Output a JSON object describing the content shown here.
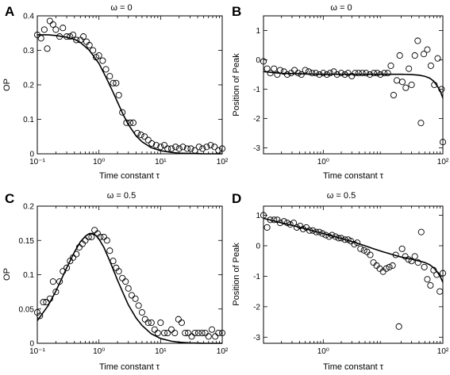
{
  "chart_data": [
    {
      "panel": "A",
      "type": "scatter",
      "title": "ω = 0",
      "xlabel": "Time constant  τ",
      "ylabel": "OP",
      "xscale": "log",
      "xlim": [
        0.1,
        100
      ],
      "ylim": [
        0,
        0.4
      ],
      "xticks": [
        0.1,
        1,
        10,
        100
      ],
      "xtick_labels": [
        "10⁻¹",
        "10⁰",
        "10¹",
        "10²"
      ],
      "yticks": [
        0,
        0.1,
        0.2,
        0.3,
        0.4
      ],
      "ytick_labels": [
        "0",
        "0.1",
        "0.2",
        "0.3",
        "0.4"
      ],
      "series": [
        {
          "marker": "open-circle",
          "x": [
            0.1,
            0.115,
            0.13,
            0.145,
            0.16,
            0.18,
            0.2,
            0.23,
            0.26,
            0.3,
            0.34,
            0.38,
            0.43,
            0.5,
            0.56,
            0.63,
            0.7,
            0.8,
            0.9,
            1.0,
            1.15,
            1.3,
            1.5,
            1.7,
            1.9,
            2.1,
            2.4,
            2.8,
            3.2,
            3.6,
            4.2,
            4.8,
            5.5,
            6.3,
            7.2,
            8.5,
            10,
            11.5,
            13,
            15,
            17.5,
            20,
            23,
            27,
            31,
            36,
            42,
            48,
            56,
            65,
            75,
            87,
            100
          ],
          "y": [
            0.345,
            0.335,
            0.36,
            0.305,
            0.385,
            0.375,
            0.36,
            0.34,
            0.365,
            0.34,
            0.34,
            0.345,
            0.33,
            0.33,
            0.34,
            0.325,
            0.315,
            0.3,
            0.28,
            0.285,
            0.27,
            0.245,
            0.225,
            0.205,
            0.205,
            0.17,
            0.12,
            0.09,
            0.09,
            0.09,
            0.06,
            0.055,
            0.05,
            0.04,
            0.03,
            0.025,
            0.02,
            0.025,
            0.015,
            0.015,
            0.02,
            0.015,
            0.02,
            0.015,
            0.015,
            0.01,
            0.02,
            0.015,
            0.02,
            0.025,
            0.02,
            0.01,
            0.015
          ]
        },
        {
          "marker": "solid-line",
          "x": [
            0.1,
            0.15,
            0.2,
            0.3,
            0.4,
            0.5,
            0.7,
            1.0,
            1.3,
            1.7,
            2.0,
            2.5,
            3.0,
            4.0,
            5.0,
            7.0,
            10,
            15,
            20,
            30,
            50,
            100
          ],
          "y": [
            0.345,
            0.345,
            0.343,
            0.338,
            0.332,
            0.323,
            0.3,
            0.262,
            0.222,
            0.178,
            0.15,
            0.112,
            0.085,
            0.052,
            0.035,
            0.018,
            0.009,
            0.004,
            0.002,
            0.001,
            0.0,
            0.0
          ]
        }
      ]
    },
    {
      "panel": "B",
      "type": "scatter",
      "title": "ω = 0",
      "xlabel": "Time constant  τ",
      "ylabel": "Position of Peak",
      "xscale": "log",
      "xlim": [
        0.1,
        100
      ],
      "ylim": [
        -3.2,
        1.5
      ],
      "xticks": [
        1,
        100
      ],
      "xtick_labels": [
        "10⁰",
        "10²"
      ],
      "yticks": [
        -3,
        -2,
        -1,
        0,
        1
      ],
      "ytick_labels": [
        "-3",
        "-2",
        "-1",
        "0",
        "1"
      ],
      "series": [
        {
          "marker": "open-circle",
          "x": [
            0.1,
            0.115,
            0.13,
            0.15,
            0.17,
            0.19,
            0.22,
            0.25,
            0.29,
            0.33,
            0.38,
            0.43,
            0.5,
            0.57,
            0.65,
            0.75,
            0.86,
            1.0,
            1.15,
            1.3,
            1.5,
            1.7,
            2.0,
            2.3,
            2.6,
            3.0,
            3.4,
            3.9,
            4.5,
            5.2,
            6.0,
            7.0,
            8.0,
            9.0,
            10.5,
            12,
            13.5,
            15,
            17,
            19,
            21,
            24,
            27,
            30,
            34,
            38,
            43,
            48,
            55,
            63,
            72,
            82,
            95,
            100
          ],
          "y": [
            -0.05,
            -0.3,
            -0.45,
            -0.3,
            -0.5,
            -0.35,
            -0.4,
            -0.5,
            -0.45,
            -0.35,
            -0.45,
            -0.5,
            -0.35,
            -0.4,
            -0.45,
            -0.45,
            -0.5,
            -0.45,
            -0.5,
            -0.45,
            -0.4,
            -0.5,
            -0.45,
            -0.5,
            -0.45,
            -0.55,
            -0.45,
            -0.45,
            -0.45,
            -0.45,
            -0.5,
            -0.45,
            -0.45,
            -0.5,
            -0.45,
            -0.45,
            -0.2,
            -1.2,
            -0.7,
            0.15,
            -0.75,
            -0.95,
            -0.3,
            -0.85,
            0.15,
            0.65,
            -2.15,
            0.2,
            0.35,
            -0.2,
            -0.85,
            0.05,
            -1.0,
            -2.8
          ]
        },
        {
          "marker": "solid-line",
          "x": [
            0.1,
            0.2,
            0.5,
            1,
            2,
            5,
            10,
            20,
            30,
            40,
            50,
            60,
            70,
            80,
            90,
            100
          ],
          "y": [
            -0.4,
            -0.46,
            -0.48,
            -0.49,
            -0.49,
            -0.49,
            -0.49,
            -0.49,
            -0.5,
            -0.52,
            -0.56,
            -0.62,
            -0.72,
            -0.88,
            -1.05,
            -1.3
          ]
        }
      ]
    },
    {
      "panel": "C",
      "type": "scatter",
      "title": "ω = 0.5",
      "xlabel": "Time constant  τ",
      "ylabel": "OP",
      "xscale": "log",
      "xlim": [
        0.1,
        100
      ],
      "ylim": [
        0,
        0.2
      ],
      "xticks": [
        0.1,
        1,
        10,
        100
      ],
      "xtick_labels": [
        "10⁻¹",
        "10⁰",
        "10¹",
        "10²"
      ],
      "yticks": [
        0,
        0.05,
        0.1,
        0.15,
        0.2
      ],
      "ytick_labels": [
        "0",
        "0.05",
        "0.1",
        "0.15",
        "0.2"
      ],
      "series": [
        {
          "marker": "open-circle",
          "x": [
            0.1,
            0.11,
            0.125,
            0.14,
            0.16,
            0.18,
            0.2,
            0.23,
            0.26,
            0.3,
            0.34,
            0.38,
            0.43,
            0.48,
            0.54,
            0.6,
            0.68,
            0.76,
            0.85,
            0.95,
            1.05,
            1.2,
            1.35,
            1.5,
            1.7,
            1.9,
            2.1,
            2.4,
            2.7,
            3.0,
            3.4,
            3.9,
            4.4,
            5.0,
            5.6,
            6.3,
            7.1,
            8.0,
            9.0,
            10,
            11.5,
            13,
            15,
            17,
            19.5,
            22,
            25,
            28,
            32,
            36,
            41,
            47,
            53,
            60,
            68,
            77,
            87,
            100
          ],
          "y": [
            0.045,
            0.04,
            0.06,
            0.06,
            0.065,
            0.09,
            0.075,
            0.09,
            0.105,
            0.11,
            0.12,
            0.125,
            0.13,
            0.14,
            0.145,
            0.15,
            0.155,
            0.155,
            0.165,
            0.16,
            0.155,
            0.155,
            0.15,
            0.135,
            0.12,
            0.11,
            0.105,
            0.095,
            0.09,
            0.08,
            0.07,
            0.065,
            0.055,
            0.045,
            0.035,
            0.03,
            0.03,
            0.02,
            0.015,
            0.03,
            0.015,
            0.015,
            0.02,
            0.015,
            0.035,
            0.03,
            0.015,
            0.015,
            0.01,
            0.015,
            0.015,
            0.015,
            0.015,
            0.01,
            0.02,
            0.01,
            0.015,
            0.015
          ]
        },
        {
          "marker": "solid-line",
          "x": [
            0.1,
            0.15,
            0.2,
            0.3,
            0.4,
            0.5,
            0.6,
            0.7,
            0.8,
            0.9,
            1.0,
            1.2,
            1.5,
            2.0,
            2.5,
            3.0,
            4.0,
            5.0,
            7.0,
            10,
            15,
            20,
            30,
            50,
            100
          ],
          "y": [
            0.033,
            0.055,
            0.076,
            0.11,
            0.133,
            0.148,
            0.156,
            0.16,
            0.16,
            0.157,
            0.152,
            0.14,
            0.12,
            0.092,
            0.072,
            0.056,
            0.037,
            0.026,
            0.014,
            0.007,
            0.003,
            0.0015,
            0.0005,
            0.0,
            0.0
          ]
        }
      ]
    },
    {
      "panel": "D",
      "type": "scatter",
      "title": "ω = 0.5",
      "xlabel": "Time constant  τ",
      "ylabel": "Position of Peak",
      "xscale": "log",
      "xlim": [
        0.1,
        100
      ],
      "ylim": [
        -3.2,
        1.3
      ],
      "xticks": [
        1,
        100
      ],
      "xtick_labels": [
        "10⁰",
        "10²"
      ],
      "yticks": [
        -3,
        -2,
        -1,
        0,
        1
      ],
      "ytick_labels": [
        "-3",
        "-2",
        "-1",
        "0",
        "1"
      ],
      "series": [
        {
          "marker": "open-circle",
          "x": [
            0.1,
            0.115,
            0.13,
            0.15,
            0.17,
            0.19,
            0.22,
            0.25,
            0.28,
            0.32,
            0.36,
            0.41,
            0.46,
            0.52,
            0.59,
            0.67,
            0.76,
            0.86,
            0.97,
            1.1,
            1.25,
            1.4,
            1.6,
            1.8,
            2.0,
            2.3,
            2.6,
            2.9,
            3.3,
            3.7,
            4.2,
            4.8,
            5.4,
            6.1,
            6.9,
            7.8,
            8.8,
            10,
            11.3,
            12.7,
            14.4,
            16.3,
            18.4,
            20.8,
            23.5,
            26.6,
            30,
            34,
            38.5,
            43.5,
            49,
            55,
            62,
            70,
            79,
            89,
            100
          ],
          "y": [
            1.0,
            0.6,
            0.85,
            0.85,
            0.85,
            0.75,
            0.8,
            0.75,
            0.7,
            0.75,
            0.6,
            0.65,
            0.55,
            0.6,
            0.5,
            0.5,
            0.45,
            0.45,
            0.4,
            0.35,
            0.3,
            0.35,
            0.3,
            0.25,
            0.25,
            0.2,
            0.2,
            0.15,
            0.05,
            0.1,
            -0.1,
            -0.15,
            -0.2,
            -0.3,
            -0.55,
            -0.65,
            -0.75,
            -0.85,
            -0.75,
            -0.7,
            -0.65,
            -0.3,
            -2.65,
            -0.1,
            -0.35,
            -0.45,
            -0.5,
            -0.35,
            -0.55,
            0.45,
            -0.7,
            -1.1,
            -1.3,
            -0.8,
            -0.95,
            -1.5,
            -0.9
          ]
        },
        {
          "marker": "solid-line",
          "x": [
            0.1,
            0.2,
            0.3,
            0.5,
            0.7,
            1.0,
            1.5,
            2,
            3,
            5,
            7,
            10,
            15,
            20,
            30,
            40,
            50,
            60,
            70,
            80,
            90,
            100
          ],
          "y": [
            0.9,
            0.75,
            0.67,
            0.56,
            0.48,
            0.4,
            0.31,
            0.24,
            0.14,
            0.0,
            -0.1,
            -0.2,
            -0.3,
            -0.37,
            -0.44,
            -0.5,
            -0.55,
            -0.62,
            -0.72,
            -0.85,
            -1.0,
            -1.2
          ]
        }
      ]
    }
  ]
}
